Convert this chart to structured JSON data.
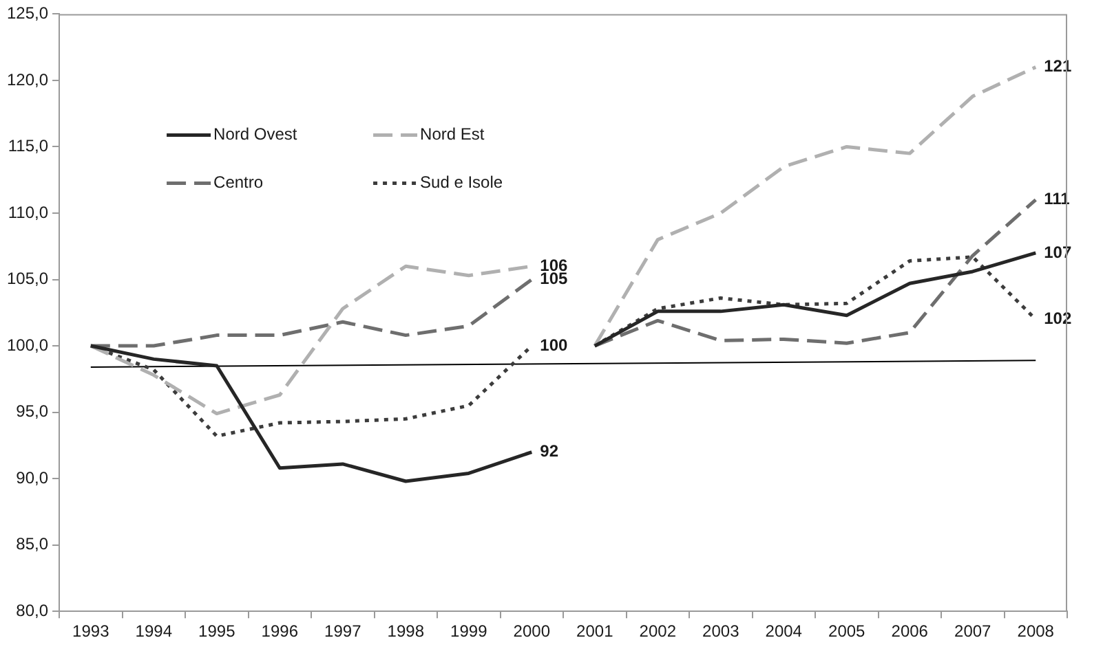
{
  "chart_data": {
    "type": "line",
    "categories": [
      "1993",
      "1994",
      "1995",
      "1996",
      "1997",
      "1998",
      "1999",
      "2000",
      "2001",
      "2002",
      "2003",
      "2004",
      "2005",
      "2006",
      "2007",
      "2008"
    ],
    "ylim": [
      80,
      125
    ],
    "yticks": [
      {
        "value": 80,
        "label": "80,0"
      },
      {
        "value": 85,
        "label": "85,0"
      },
      {
        "value": 90,
        "label": "90,0"
      },
      {
        "value": 95,
        "label": "95,0"
      },
      {
        "value": 100,
        "label": "100,0"
      },
      {
        "value": 105,
        "label": "105,0"
      },
      {
        "value": 110,
        "label": "110,0"
      },
      {
        "value": 115,
        "label": "115,0"
      },
      {
        "value": 120,
        "label": "120,0"
      },
      {
        "value": 125,
        "label": "125,0"
      }
    ],
    "legend": "top left",
    "marker": "none",
    "series": [
      {
        "name": "Nord Ovest",
        "color": "#262626",
        "line_style": "solid",
        "values": [
          100,
          99.0,
          98.5,
          90.8,
          91.1,
          89.8,
          90.4,
          92,
          null,
          null,
          null,
          null,
          null,
          null,
          null,
          null
        ],
        "value_labels": [
          null,
          null,
          null,
          null,
          null,
          null,
          null,
          "92",
          null,
          null,
          null,
          null,
          null,
          null,
          null,
          null
        ]
      },
      {
        "name": "Nord Est",
        "color": "#b0b0b0",
        "line_style": "dashed",
        "values": [
          100,
          97.8,
          94.9,
          96.3,
          102.8,
          106.0,
          105.3,
          106,
          null,
          null,
          null,
          null,
          null,
          null,
          null,
          null
        ],
        "value_labels": [
          null,
          null,
          null,
          null,
          null,
          null,
          null,
          "106",
          null,
          null,
          null,
          null,
          null,
          null,
          null,
          null
        ]
      },
      {
        "name": "Centro",
        "color": "#6e6e6e",
        "line_style": "dashed",
        "values": [
          100,
          100,
          100.8,
          100.8,
          101.8,
          100.8,
          101.5,
          105,
          null,
          null,
          null,
          null,
          null,
          null,
          null,
          null
        ],
        "value_labels": [
          null,
          null,
          null,
          null,
          null,
          null,
          null,
          "105",
          null,
          null,
          null,
          null,
          null,
          null,
          null,
          null
        ]
      },
      {
        "name": "Sud e Isole",
        "color": "#3c3c3c",
        "line_style": "dotted",
        "values": [
          100,
          98.2,
          93.2,
          94.2,
          94.3,
          94.5,
          95.5,
          100,
          null,
          null,
          null,
          null,
          null,
          null,
          null,
          null
        ],
        "value_labels": [
          null,
          null,
          null,
          null,
          null,
          null,
          null,
          "100",
          null,
          null,
          null,
          null,
          null,
          null,
          null,
          null
        ]
      },
      {
        "color": "#262626",
        "line_style": "solid",
        "values": [
          null,
          null,
          null,
          null,
          null,
          null,
          null,
          null,
          100,
          102.6,
          102.6,
          103.1,
          102.3,
          104.7,
          105.6,
          107
        ],
        "value_labels": [
          null,
          null,
          null,
          null,
          null,
          null,
          null,
          null,
          null,
          null,
          null,
          null,
          null,
          null,
          null,
          "107"
        ]
      },
      {
        "color": "#b0b0b0",
        "line_style": "dashed",
        "values": [
          null,
          null,
          null,
          null,
          null,
          null,
          null,
          null,
          100,
          108.0,
          110.0,
          113.5,
          115.0,
          114.5,
          118.8,
          121
        ],
        "value_labels": [
          null,
          null,
          null,
          null,
          null,
          null,
          null,
          null,
          null,
          null,
          null,
          null,
          null,
          null,
          null,
          "121"
        ]
      },
      {
        "color": "#6e6e6e",
        "line_style": "dashed",
        "values": [
          null,
          null,
          null,
          null,
          null,
          null,
          null,
          null,
          100,
          101.9,
          100.4,
          100.5,
          100.2,
          101.0,
          106.8,
          111
        ],
        "value_labels": [
          null,
          null,
          null,
          null,
          null,
          null,
          null,
          null,
          null,
          null,
          null,
          null,
          null,
          null,
          null,
          "111"
        ]
      },
      {
        "color": "#3c3c3c",
        "line_style": "dotted",
        "values": [
          null,
          null,
          null,
          null,
          null,
          null,
          null,
          null,
          100,
          102.8,
          103.6,
          103.1,
          103.2,
          106.4,
          106.7,
          102
        ],
        "value_labels": [
          null,
          null,
          null,
          null,
          null,
          null,
          null,
          null,
          null,
          null,
          null,
          null,
          null,
          null,
          null,
          "102"
        ]
      },
      {
        "type": "line",
        "color": "#000000",
        "line_style": "solid",
        "values": [
          98.4,
          null,
          null,
          null,
          null,
          null,
          null,
          null,
          null,
          null,
          null,
          null,
          null,
          null,
          null,
          98.9
        ]
      }
    ]
  }
}
